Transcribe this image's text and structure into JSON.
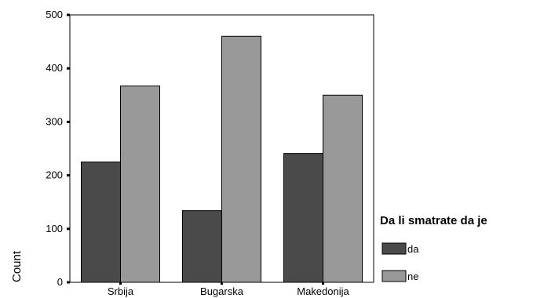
{
  "chart_data": {
    "type": "bar",
    "categories": [
      "Srbija",
      "Bugarska",
      "Makedonija"
    ],
    "series": [
      {
        "name": "da",
        "values": [
          225,
          134,
          241
        ],
        "color": "#4a4a4a"
      },
      {
        "name": "ne",
        "values": [
          367,
          460,
          350
        ],
        "color": "#999999"
      }
    ],
    "ylabel": "Count",
    "ylim": [
      0,
      500
    ],
    "yticks": [
      0,
      100,
      200,
      300,
      400,
      500
    ],
    "grid": false,
    "legend": {
      "title": "Da li smatrate da je",
      "placement": "right"
    }
  }
}
